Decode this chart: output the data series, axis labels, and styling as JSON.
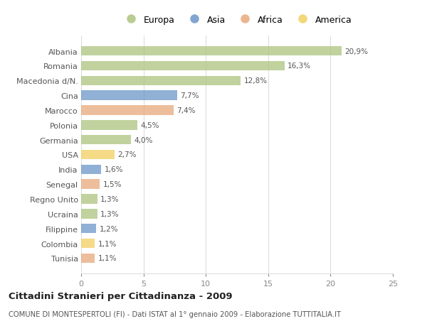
{
  "countries": [
    "Albania",
    "Romania",
    "Macedonia d/N.",
    "Cina",
    "Marocco",
    "Polonia",
    "Germania",
    "USA",
    "India",
    "Senegal",
    "Regno Unito",
    "Ucraina",
    "Filippine",
    "Colombia",
    "Tunisia"
  ],
  "values": [
    20.9,
    16.3,
    12.8,
    7.7,
    7.4,
    4.5,
    4.0,
    2.7,
    1.6,
    1.5,
    1.3,
    1.3,
    1.2,
    1.1,
    1.1
  ],
  "labels": [
    "20,9%",
    "16,3%",
    "12,8%",
    "7,7%",
    "7,4%",
    "4,5%",
    "4,0%",
    "2,7%",
    "1,6%",
    "1,5%",
    "1,3%",
    "1,3%",
    "1,2%",
    "1,1%",
    "1,1%"
  ],
  "continents": [
    "Europa",
    "Europa",
    "Europa",
    "Asia",
    "Africa",
    "Europa",
    "Europa",
    "America",
    "Asia",
    "Africa",
    "Europa",
    "Europa",
    "Asia",
    "America",
    "Africa"
  ],
  "colors": {
    "Europa": "#adc47e",
    "Asia": "#6b96c8",
    "Africa": "#e8a87a",
    "America": "#f2d060"
  },
  "legend_order": [
    "Europa",
    "Asia",
    "Africa",
    "America"
  ],
  "title": "Cittadini Stranieri per Cittadinanza - 2009",
  "subtitle": "COMUNE DI MONTESPERTOLI (FI) - Dati ISTAT al 1° gennaio 2009 - Elaborazione TUTTITALIA.IT",
  "xlim": [
    0,
    25
  ],
  "xticks": [
    0,
    5,
    10,
    15,
    20,
    25
  ],
  "background_color": "#ffffff",
  "grid_color": "#dddddd",
  "bar_alpha": 0.75
}
